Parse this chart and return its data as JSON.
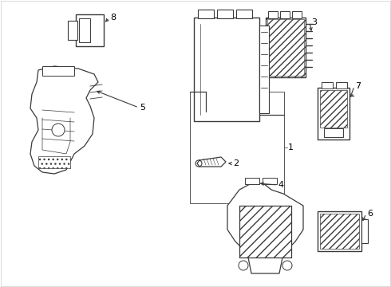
{
  "background_color": "#ffffff",
  "line_color": "#3a3a3a",
  "label_color": "#000000",
  "figsize": [
    4.9,
    3.6
  ],
  "dpi": 100,
  "border_color": "#cccccc"
}
